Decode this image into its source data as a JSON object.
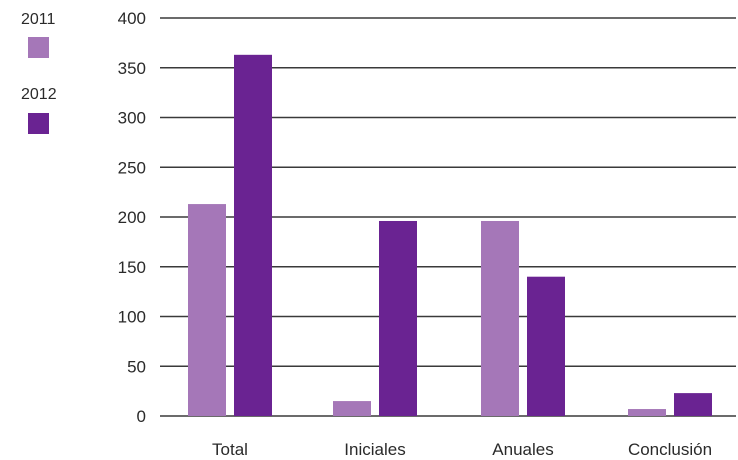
{
  "chart_data": {
    "type": "bar",
    "categories": [
      "Total",
      "Iniciales",
      "Anuales",
      "Conclusión"
    ],
    "series": [
      {
        "name": "2011",
        "values": [
          213,
          15,
          196,
          7
        ],
        "color": "#a577b8"
      },
      {
        "name": "2012",
        "values": [
          363,
          196,
          140,
          23
        ],
        "color": "#6a2392"
      }
    ],
    "title": "",
    "xlabel": "",
    "ylabel": "",
    "ylim": [
      0,
      400
    ],
    "yticks": [
      0,
      50,
      100,
      150,
      200,
      250,
      300,
      350,
      400
    ],
    "grid": true,
    "legend_position": "top-left"
  }
}
